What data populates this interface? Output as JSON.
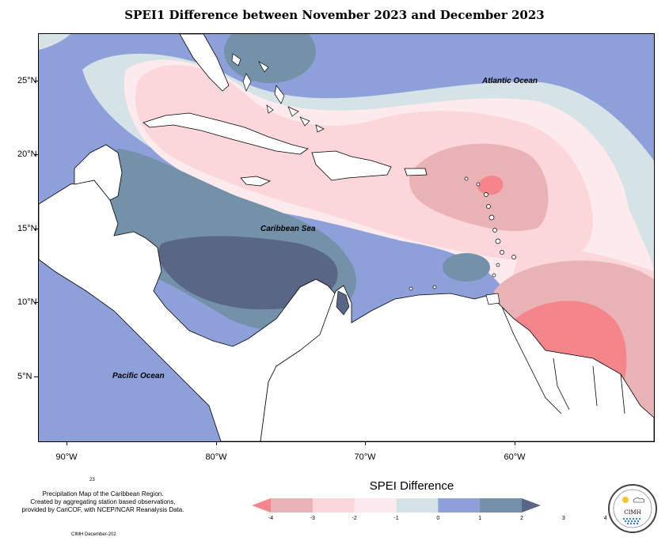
{
  "title": "SPEI1 Difference between November 2023 and December 2023",
  "axes": {
    "lat_labels": [
      "25°N",
      "20°N",
      "15°N",
      "10°N",
      "5°N"
    ],
    "lon_labels": [
      "90°W",
      "80°W",
      "70°W",
      "60°W"
    ]
  },
  "ocean_labels": {
    "atlantic": "Atlantic Ocean",
    "caribbean": "Caribbean Sea",
    "pacific": "Pacific Ocean"
  },
  "footer": {
    "note_line1": "Precipitation Map of the Caribbean Region.",
    "note_line2": "Created by aggregating station based observations,",
    "note_line3": "provided by CariCOF, with NCEP/NCAR Reanalysis Data.",
    "small_number": "23",
    "credit": "CIMH December-202"
  },
  "legend": {
    "title": "SPEI Difference",
    "ticks": [
      "-4",
      "-3",
      "-2",
      "-1",
      "0",
      "1",
      "2",
      "3",
      "4"
    ],
    "colors": [
      "#f4858a",
      "#e9b2b5",
      "#fbd6da",
      "#fdeaec",
      "#d5e3e7",
      "#8ea0da",
      "#7391a8",
      "#5a6686"
    ]
  },
  "logo": {
    "text": "CIMH"
  }
}
